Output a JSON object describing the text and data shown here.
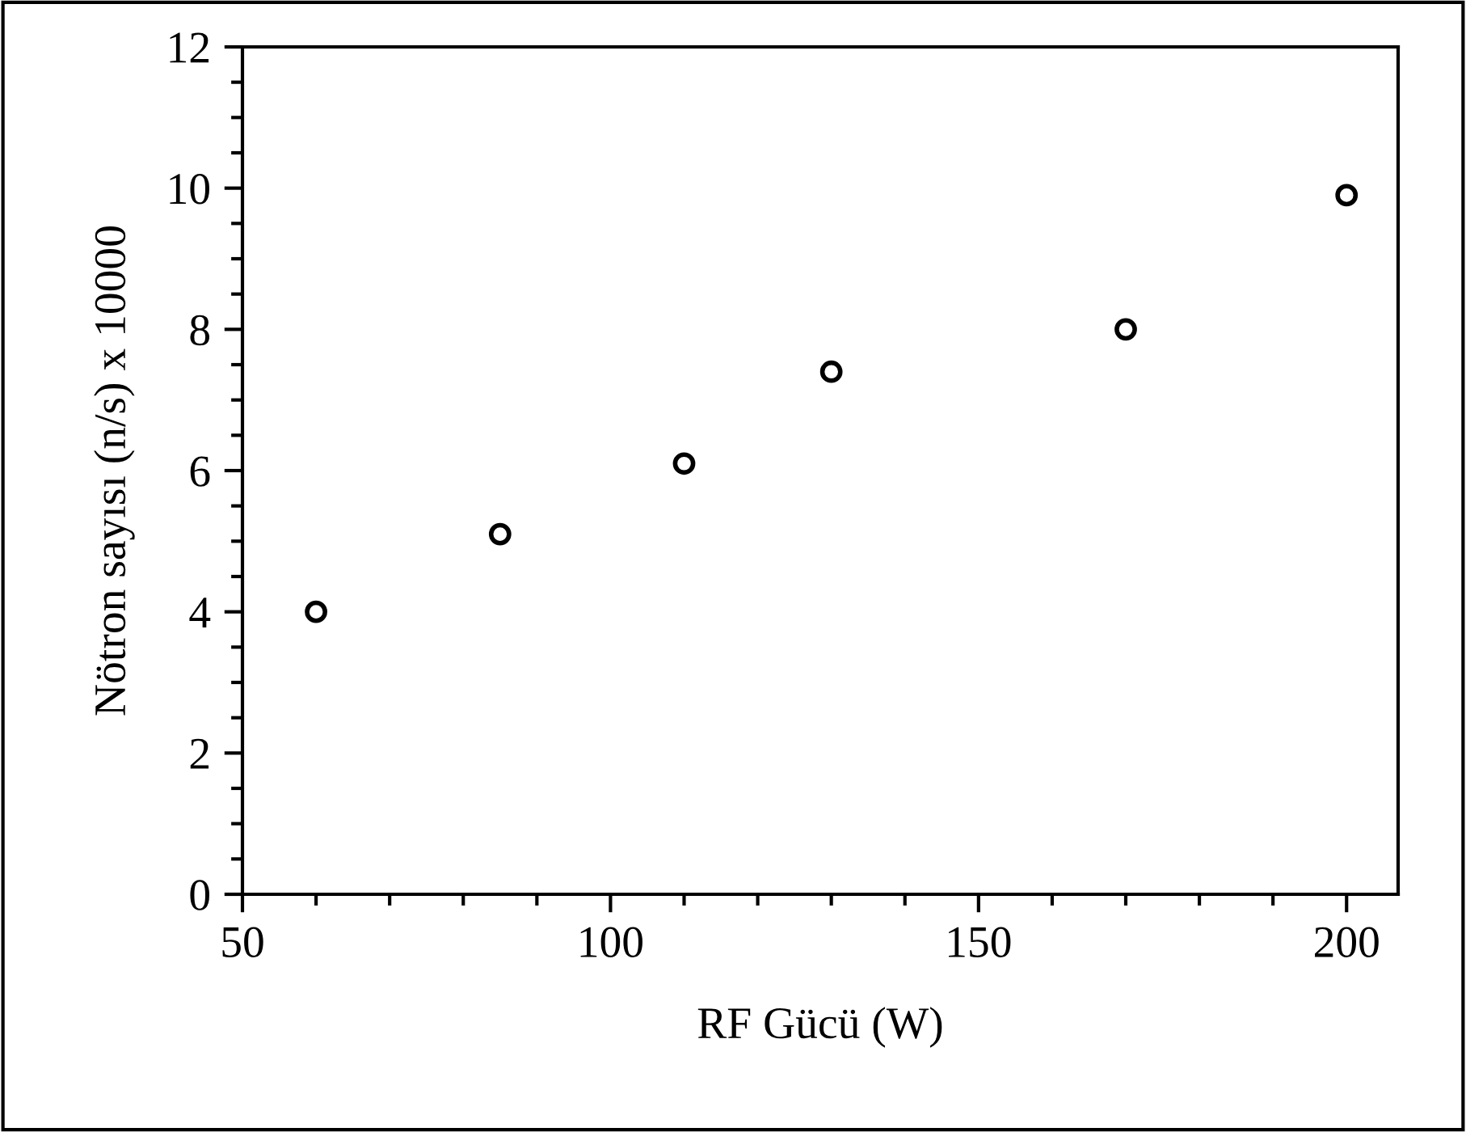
{
  "chart_data": {
    "type": "scatter",
    "xlabel": "RF Gücü (W)",
    "ylabel": "Nötron sayısı (n/s) x 10000",
    "x": [
      60,
      85,
      110,
      130,
      170,
      200
    ],
    "series": [
      {
        "color": "#000000",
        "values": [
          4.0,
          5.1,
          6.1,
          7.4,
          8.0,
          9.9
        ]
      }
    ],
    "marker": "circle",
    "grid": false,
    "legend": false,
    "xlim": [
      50,
      207
    ],
    "ylim": [
      0,
      12
    ],
    "xticks": [
      50,
      {
        "value": 60,
        "label": null
      },
      {
        "value": 70,
        "label": null
      },
      {
        "value": 80,
        "label": null
      },
      {
        "value": 90,
        "label": null
      },
      100,
      {
        "value": 110,
        "label": null
      },
      {
        "value": 120,
        "label": null
      },
      {
        "value": 130,
        "label": null
      },
      {
        "value": 140,
        "label": null
      },
      150,
      {
        "value": 160,
        "label": null
      },
      {
        "value": 170,
        "label": null
      },
      {
        "value": 180,
        "label": null
      },
      {
        "value": 190,
        "label": null
      },
      200
    ],
    "yticks": [
      0,
      {
        "value": 0.5,
        "label": null
      },
      {
        "value": 1,
        "label": null
      },
      {
        "value": 1.5,
        "label": null
      },
      2,
      {
        "value": 2.5,
        "label": null
      },
      {
        "value": 3,
        "label": null
      },
      {
        "value": 3.5,
        "label": null
      },
      4,
      {
        "value": 4.5,
        "label": null
      },
      {
        "value": 5,
        "label": null
      },
      {
        "value": 5.5,
        "label": null
      },
      6,
      {
        "value": 6.5,
        "label": null
      },
      {
        "value": 7,
        "label": null
      },
      {
        "value": 7.5,
        "label": null
      },
      8,
      {
        "value": 8.5,
        "label": null
      },
      {
        "value": 9,
        "label": null
      },
      {
        "value": 9.5,
        "label": null
      },
      10,
      {
        "value": 10.5,
        "label": null
      },
      {
        "value": 11,
        "label": null
      },
      {
        "value": 11.5,
        "label": null
      },
      12
    ]
  }
}
